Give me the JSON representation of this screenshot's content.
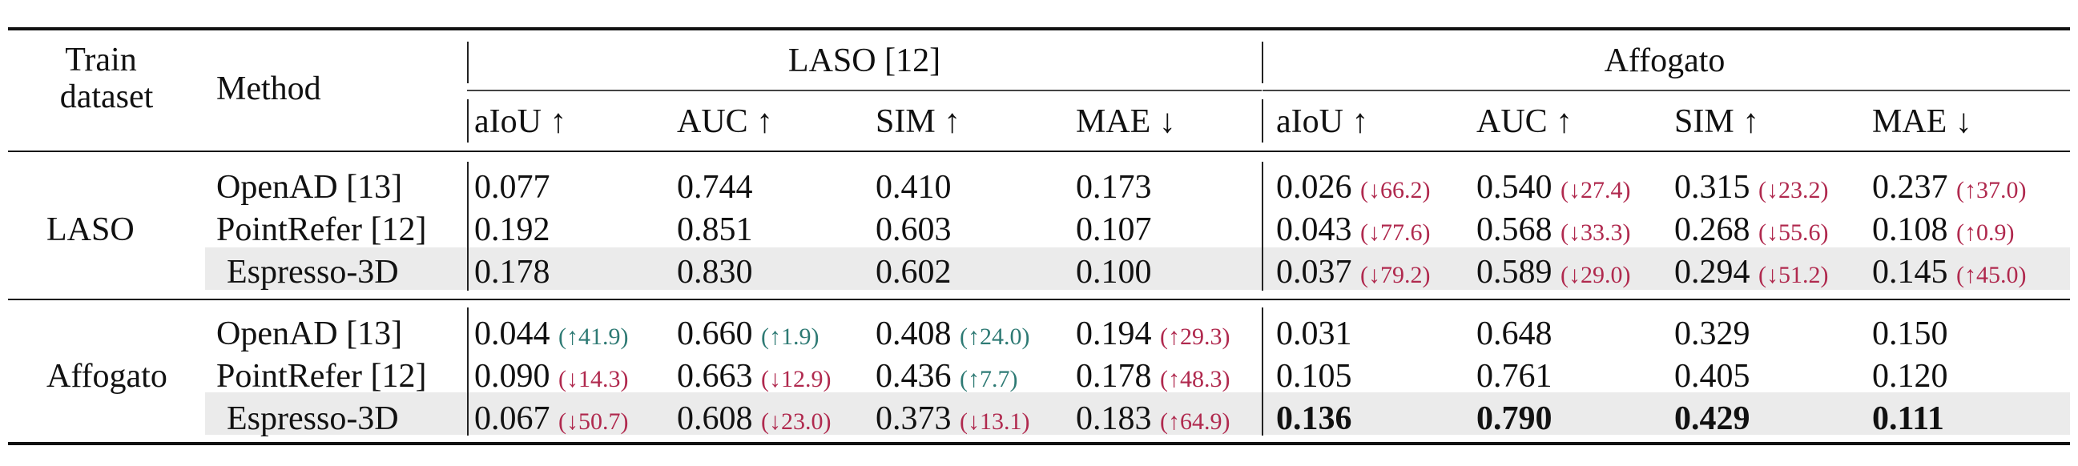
{
  "header": {
    "train_dataset_line1": "Train",
    "train_dataset_line2": "dataset",
    "method": "Method",
    "groups": [
      "LASO [12]",
      "Affogato"
    ],
    "metrics": [
      "aIoU ↑",
      "AUC ↑",
      "SIM ↑",
      "MAE ↓",
      "aIoU ↑",
      "AUC ↑",
      "SIM ↑",
      "MAE ↓"
    ]
  },
  "groups": [
    {
      "train_dataset": "LASO",
      "rows": [
        {
          "method": "OpenAD [13]",
          "highlight": false,
          "cells": [
            {
              "v": "0.077"
            },
            {
              "v": "0.744"
            },
            {
              "v": "0.410"
            },
            {
              "v": "0.173"
            },
            {
              "v": "0.026",
              "d": "(↓66.2)",
              "dir": "down"
            },
            {
              "v": "0.540",
              "d": "(↓27.4)",
              "dir": "down"
            },
            {
              "v": "0.315",
              "d": "(↓23.2)",
              "dir": "down"
            },
            {
              "v": "0.237",
              "d": "(↑37.0)",
              "dir": "up-bad"
            }
          ]
        },
        {
          "method": "PointRefer [12]",
          "highlight": false,
          "cells": [
            {
              "v": "0.192"
            },
            {
              "v": "0.851"
            },
            {
              "v": "0.603"
            },
            {
              "v": "0.107"
            },
            {
              "v": "0.043",
              "d": "(↓77.6)",
              "dir": "down"
            },
            {
              "v": "0.568",
              "d": "(↓33.3)",
              "dir": "down"
            },
            {
              "v": "0.268",
              "d": "(↓55.6)",
              "dir": "down"
            },
            {
              "v": "0.108",
              "d": "(↑0.9)",
              "dir": "up-bad"
            }
          ]
        },
        {
          "method": "Espresso-3D",
          "highlight": true,
          "cells": [
            {
              "v": "0.178"
            },
            {
              "v": "0.830"
            },
            {
              "v": "0.602"
            },
            {
              "v": "0.100"
            },
            {
              "v": "0.037",
              "d": "(↓79.2)",
              "dir": "down"
            },
            {
              "v": "0.589",
              "d": "(↓29.0)",
              "dir": "down"
            },
            {
              "v": "0.294",
              "d": "(↓51.2)",
              "dir": "down"
            },
            {
              "v": "0.145",
              "d": "(↑45.0)",
              "dir": "up-bad"
            }
          ]
        }
      ]
    },
    {
      "train_dataset": "Affogato",
      "rows": [
        {
          "method": "OpenAD [13]",
          "highlight": false,
          "cells": [
            {
              "v": "0.044",
              "d": "(↑41.9)",
              "dir": "up-good"
            },
            {
              "v": "0.660",
              "d": "(↑1.9)",
              "dir": "up-good"
            },
            {
              "v": "0.408",
              "d": "(↑24.0)",
              "dir": "up-good"
            },
            {
              "v": "0.194",
              "d": "(↑29.3)",
              "dir": "up-bad"
            },
            {
              "v": "0.031"
            },
            {
              "v": "0.648"
            },
            {
              "v": "0.329"
            },
            {
              "v": "0.150"
            }
          ]
        },
        {
          "method": "PointRefer [12]",
          "highlight": false,
          "cells": [
            {
              "v": "0.090",
              "d": "(↓14.3)",
              "dir": "down"
            },
            {
              "v": "0.663",
              "d": "(↓12.9)",
              "dir": "down"
            },
            {
              "v": "0.436",
              "d": "(↑7.7)",
              "dir": "up-good"
            },
            {
              "v": "0.178",
              "d": "(↑48.3)",
              "dir": "up-bad"
            },
            {
              "v": "0.105"
            },
            {
              "v": "0.761"
            },
            {
              "v": "0.405"
            },
            {
              "v": "0.120"
            }
          ]
        },
        {
          "method": "Espresso-3D",
          "highlight": true,
          "cells": [
            {
              "v": "0.067",
              "d": "(↓50.7)",
              "dir": "down"
            },
            {
              "v": "0.608",
              "d": "(↓23.0)",
              "dir": "down"
            },
            {
              "v": "0.373",
              "d": "(↓13.1)",
              "dir": "down"
            },
            {
              "v": "0.183",
              "d": "(↑64.9)",
              "dir": "up-bad"
            },
            {
              "v": "0.136",
              "bold": true
            },
            {
              "v": "0.790",
              "bold": true
            },
            {
              "v": "0.429",
              "bold": true
            },
            {
              "v": "0.111",
              "bold": true
            }
          ]
        }
      ]
    }
  ],
  "colors": {
    "delta_worse": "#b0294e",
    "delta_better": "#2e7a74",
    "highlight_band": "#ebebeb"
  }
}
